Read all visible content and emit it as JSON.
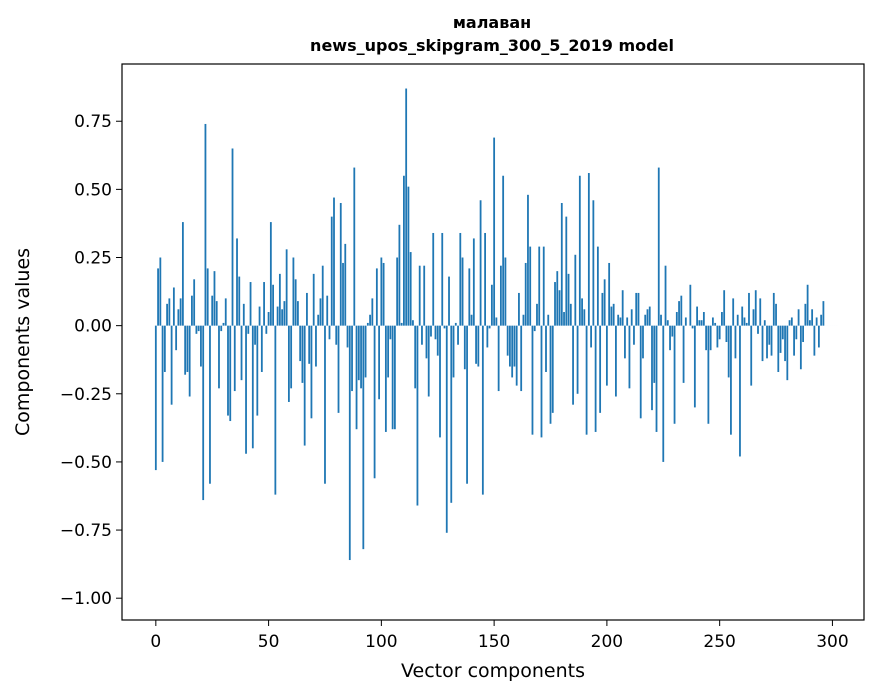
{
  "chart_data": {
    "type": "bar",
    "title": "малаван",
    "subtitle": "news_upos_skipgram_300_5_2019 model",
    "xlabel": "Vector components",
    "ylabel": "Components values",
    "xlim": [
      -15,
      314
    ],
    "ylim": [
      -1.08,
      0.96
    ],
    "xticks": [
      0,
      50,
      100,
      150,
      200,
      250,
      300
    ],
    "xtick_labels": [
      "0",
      "50",
      "100",
      "150",
      "200",
      "250",
      "300"
    ],
    "yticks": [
      -1.0,
      -0.75,
      -0.5,
      -0.25,
      0.0,
      0.25,
      0.5,
      0.75
    ],
    "ytick_labels": [
      "−1.00",
      "−0.75",
      "−0.50",
      "−0.25",
      "0.00",
      "0.25",
      "0.50",
      "0.75"
    ],
    "grid": false,
    "bar_color": "#1f77b4",
    "values": [
      -0.53,
      0.21,
      0.25,
      -0.5,
      -0.17,
      0.08,
      0.1,
      -0.29,
      0.14,
      -0.09,
      0.06,
      0.1,
      0.38,
      -0.18,
      -0.17,
      -0.26,
      0.11,
      0.17,
      -0.03,
      -0.02,
      -0.15,
      -0.64,
      0.74,
      0.21,
      -0.58,
      0.11,
      0.2,
      0.09,
      -0.23,
      -0.02,
      0.01,
      0.1,
      -0.33,
      -0.35,
      0.65,
      -0.24,
      0.32,
      0.18,
      -0.2,
      0.08,
      -0.47,
      -0.03,
      0.16,
      -0.45,
      -0.07,
      -0.33,
      0.07,
      -0.17,
      0.16,
      -0.03,
      0.05,
      0.38,
      0.15,
      -0.62,
      0.07,
      0.19,
      0.06,
      0.09,
      0.28,
      -0.28,
      -0.23,
      0.25,
      0.17,
      0.09,
      -0.13,
      -0.21,
      -0.44,
      0.12,
      -0.14,
      -0.34,
      0.19,
      -0.15,
      0.04,
      0.1,
      0.22,
      -0.58,
      0.11,
      -0.05,
      0.4,
      0.47,
      -0.07,
      -0.32,
      0.45,
      0.23,
      0.3,
      -0.08,
      -0.86,
      -0.24,
      0.58,
      -0.38,
      -0.2,
      -0.23,
      -0.82,
      -0.19,
      0.01,
      0.04,
      0.1,
      -0.56,
      0.21,
      -0.27,
      0.25,
      0.23,
      -0.39,
      -0.19,
      -0.05,
      -0.38,
      -0.38,
      0.25,
      0.37,
      0.01,
      0.55,
      0.87,
      0.51,
      0.27,
      0.02,
      -0.23,
      -0.66,
      0.22,
      -0.07,
      0.22,
      -0.12,
      -0.26,
      -0.04,
      0.34,
      -0.05,
      -0.11,
      -0.41,
      0.34,
      -0.01,
      -0.76,
      0.18,
      -0.65,
      -0.19,
      0.01,
      -0.07,
      0.34,
      0.25,
      -0.16,
      -0.58,
      0.21,
      0.04,
      0.32,
      -0.14,
      -0.15,
      0.46,
      -0.62,
      0.34,
      -0.08,
      -0.01,
      0.15,
      0.69,
      0.03,
      -0.24,
      0.22,
      0.55,
      0.25,
      -0.11,
      -0.15,
      -0.19,
      -0.15,
      -0.22,
      0.12,
      -0.24,
      0.04,
      0.23,
      0.48,
      0.29,
      -0.4,
      -0.02,
      0.08,
      0.29,
      -0.41,
      0.29,
      -0.17,
      0.04,
      -0.36,
      -0.32,
      0.16,
      0.2,
      0.13,
      0.45,
      0.05,
      0.4,
      0.19,
      0.08,
      -0.29,
      0.26,
      -0.25,
      0.55,
      0.1,
      0.06,
      -0.4,
      0.56,
      -0.08,
      0.46,
      -0.39,
      0.29,
      -0.32,
      0.12,
      0.17,
      -0.22,
      0.23,
      0.07,
      0.08,
      -0.26,
      0.04,
      0.03,
      0.13,
      -0.12,
      0.03,
      -0.23,
      0.06,
      -0.07,
      0.12,
      0.12,
      -0.34,
      -0.12,
      0.04,
      0.06,
      0.07,
      -0.31,
      -0.21,
      -0.39,
      0.58,
      0.04,
      -0.5,
      0.22,
      0.02,
      -0.09,
      -0.04,
      -0.36,
      0.05,
      0.09,
      0.11,
      -0.21,
      0.03,
      0.0,
      0.15,
      -0.01,
      -0.3,
      0.07,
      0.02,
      0.02,
      0.05,
      -0.09,
      -0.36,
      -0.09,
      0.03,
      0.01,
      -0.08,
      -0.05,
      0.05,
      0.13,
      -0.06,
      -0.19,
      -0.4,
      0.1,
      -0.12,
      0.04,
      -0.48,
      0.07,
      0.03,
      0.01,
      0.12,
      -0.22,
      0.06,
      0.13,
      -0.03,
      0.1,
      -0.13,
      0.02,
      -0.12,
      -0.07,
      -0.11,
      0.12,
      0.08,
      -0.17,
      -0.1,
      -0.05,
      -0.13,
      -0.2,
      0.02,
      0.03,
      -0.11,
      -0.05,
      0.06,
      -0.16,
      -0.06,
      0.08,
      0.15,
      0.02,
      0.06,
      -0.11,
      0.03,
      -0.08,
      0.04,
      0.09,
      0.0,
      0.0,
      0.0,
      0.0,
      0.0,
      0.0
    ]
  }
}
